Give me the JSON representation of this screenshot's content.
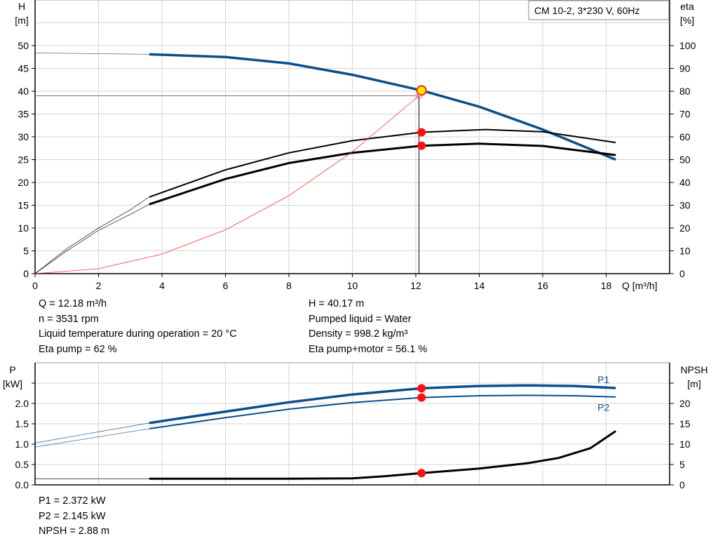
{
  "chart_data": [
    {
      "type": "line",
      "title": "CM 10-2, 3*230 V, 60Hz",
      "xlabel": "Q [m³/h]",
      "xlim": [
        0,
        20
      ],
      "xticks": [
        0,
        2,
        4,
        6,
        8,
        10,
        12,
        14,
        16,
        18
      ],
      "ylabel_left": [
        "H",
        "[m]"
      ],
      "ylim_left": [
        0,
        60
      ],
      "yticks_left": [
        0,
        5,
        10,
        15,
        20,
        25,
        30,
        35,
        40,
        45,
        50
      ],
      "ylabel_right": [
        "eta",
        "[%]"
      ],
      "ylim_right": [
        0,
        120
      ],
      "yticks_right": [
        0,
        10,
        20,
        30,
        40,
        50,
        60,
        70,
        80,
        90,
        100
      ],
      "grid": true,
      "series": [
        {
          "id": "H",
          "axis": "left",
          "color": "#0b4f8a",
          "extrapolated": [
            [
              0,
              48.4
            ],
            [
              3.6,
              48.1
            ]
          ],
          "points": [
            [
              3.6,
              48.1
            ],
            [
              6,
              47.5
            ],
            [
              8,
              46.1
            ],
            [
              10,
              43.6
            ],
            [
              12.18,
              40.17
            ],
            [
              14,
              36.6
            ],
            [
              16,
              31.6
            ],
            [
              18.3,
              25
            ]
          ]
        },
        {
          "id": "eta-pump",
          "axis": "right",
          "color": "#000000",
          "extrapolated": [
            [
              0,
              0
            ],
            [
              1,
              11
            ],
            [
              2,
              20
            ],
            [
              3,
              28
            ],
            [
              3.6,
              33.6
            ]
          ],
          "points": [
            [
              3.6,
              33.6
            ],
            [
              6,
              45.5
            ],
            [
              8,
              53
            ],
            [
              10,
              58.3
            ],
            [
              12.18,
              62
            ],
            [
              14.2,
              63.2
            ],
            [
              16,
              62.2
            ],
            [
              18.3,
              57.5
            ]
          ]
        },
        {
          "id": "eta-pump-motor",
          "axis": "right",
          "color": "#000000",
          "extrapolated": [
            [
              0,
              0
            ],
            [
              1,
              10
            ],
            [
              2,
              19
            ],
            [
              3,
              26
            ],
            [
              3.6,
              30.4
            ]
          ],
          "points": [
            [
              3.6,
              30.4
            ],
            [
              6,
              41.5
            ],
            [
              8,
              48.5
            ],
            [
              10,
              53
            ],
            [
              12.18,
              56.1
            ],
            [
              14,
              57
            ],
            [
              16,
              56
            ],
            [
              18.3,
              52
            ]
          ]
        },
        {
          "id": "system-curve",
          "axis": "left",
          "color": "#ff3030",
          "points": [
            [
              0,
              0
            ],
            [
              2,
              1.07
            ],
            [
              4,
              4.3
            ],
            [
              6,
              9.6
            ],
            [
              8,
              17.1
            ],
            [
              10,
              26.7
            ],
            [
              12.1,
              39
            ]
          ]
        }
      ],
      "duty_point": {
        "Q": 12.18,
        "H": 40.17,
        "eta_pump": 62,
        "eta_total": 56.1
      }
    },
    {
      "type": "line",
      "xlim": [
        0,
        20
      ],
      "ylabel_left": [
        "P",
        "[kW]"
      ],
      "ylim_left": [
        0,
        3
      ],
      "yticks_left": [
        "0.0",
        "0.5",
        "1.0",
        "1.5",
        "2.0"
      ],
      "ylabel_right": [
        "NPSH",
        "[m]"
      ],
      "ylim_right": [
        0,
        30
      ],
      "yticks_right": [
        0,
        5,
        10,
        15,
        20
      ],
      "grid": true,
      "series": [
        {
          "id": "P1",
          "name": "P1",
          "axis": "left",
          "color": "#0b4f8a",
          "extrapolated": [
            [
              0,
              1.03
            ],
            [
              3.6,
              1.52
            ]
          ],
          "points": [
            [
              3.6,
              1.52
            ],
            [
              6,
              1.8
            ],
            [
              8,
              2.03
            ],
            [
              10,
              2.22
            ],
            [
              12.18,
              2.372
            ],
            [
              14,
              2.43
            ],
            [
              15.5,
              2.445
            ],
            [
              17,
              2.43
            ],
            [
              18.3,
              2.38
            ]
          ]
        },
        {
          "id": "P2",
          "name": "P2",
          "axis": "left",
          "color": "#0b4f8a",
          "extrapolated": [
            [
              0,
              0.93
            ],
            [
              3.6,
              1.38
            ]
          ],
          "points": [
            [
              3.6,
              1.38
            ],
            [
              6,
              1.65
            ],
            [
              8,
              1.86
            ],
            [
              10,
              2.02
            ],
            [
              12.18,
              2.145
            ],
            [
              14,
              2.19
            ],
            [
              15.5,
              2.2
            ],
            [
              17,
              2.19
            ],
            [
              18.3,
              2.16
            ]
          ]
        },
        {
          "id": "NPSH",
          "axis": "right",
          "color": "#000000",
          "extrapolated": [
            [
              0,
              1.5
            ],
            [
              3.6,
              1.5
            ]
          ],
          "points": [
            [
              3.6,
              1.5
            ],
            [
              6,
              1.5
            ],
            [
              8,
              1.5
            ],
            [
              10,
              1.6
            ],
            [
              11,
              2.1
            ],
            [
              12.18,
              2.88
            ],
            [
              14,
              4
            ],
            [
              15.5,
              5.3
            ],
            [
              16.5,
              6.6
            ],
            [
              17.5,
              9
            ],
            [
              18.3,
              13.2
            ]
          ]
        }
      ],
      "duty_point": {
        "Q": 12.18,
        "P1": 2.372,
        "P2": 2.145,
        "NPSH": 2.88
      }
    }
  ],
  "info_top_left": [
    "Q = 12.18 m³/h",
    "n = 3531 rpm",
    "Liquid temperature during operation = 20 °C",
    "Eta pump = 62 %"
  ],
  "info_top_right": [
    "H = 40.17 m",
    "Pumped liquid = Water",
    "Density = 998.2 kg/m³",
    "Eta pump+motor = 56.1 %"
  ],
  "info_bottom": [
    "P1 = 2.372 kW",
    "P2 = 2.145 kW",
    "NPSH = 2.88 m"
  ]
}
